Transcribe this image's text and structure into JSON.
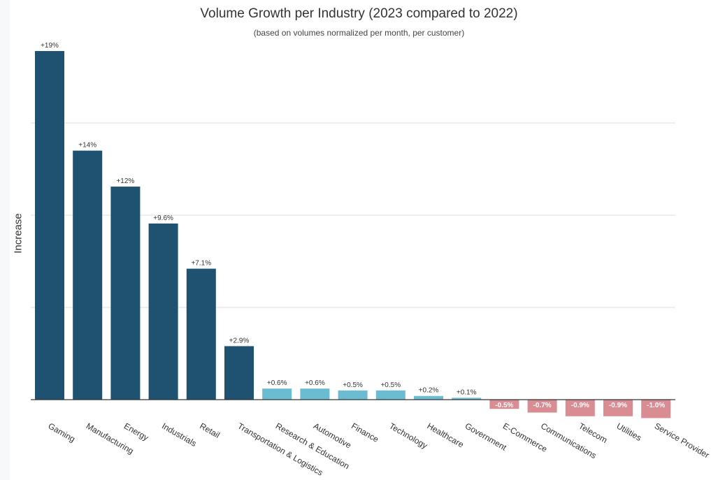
{
  "chart_data": {
    "type": "bar",
    "title": "Volume Growth per Industry (2023 compared to 2022)",
    "subtitle": "(based on volumes normalized per month, per customer)",
    "xlabel": "",
    "ylabel": "Increase",
    "ylim": [
      -1.2,
      19.5
    ],
    "grid": true,
    "categories": [
      "Gaming",
      "Manufacturing",
      "Energy",
      "Industrials",
      "Retail",
      "Transportation & Logistics",
      "Research & Education",
      "Automotive",
      "Finance",
      "Technology",
      "Healthcare",
      "Government",
      "E-Commerce",
      "Communications",
      "Telecom",
      "Utilities",
      "Service Provider"
    ],
    "values": [
      18.9,
      13.5,
      11.55,
      9.55,
      7.1,
      2.9,
      0.6,
      0.6,
      0.5,
      0.5,
      0.2,
      0.1,
      -0.5,
      -0.7,
      -0.9,
      -0.9,
      -1.0
    ],
    "labels": [
      "+19%",
      "+14%",
      "+12%",
      "+9.6%",
      "+7.1%",
      "+2.9%",
      "+0.6%",
      "+0.6%",
      "+0.5%",
      "+0.5%",
      "+0.2%",
      "+0.1%",
      "-0.5%",
      "-0.7%",
      "-0.9%",
      "-0.9%",
      "-1.0%"
    ],
    "colors": {
      "high": "#1f5270",
      "low": "#6bbcd0",
      "negative": "#d98c92",
      "grid": "#dddddd",
      "axis": "#333333"
    }
  }
}
